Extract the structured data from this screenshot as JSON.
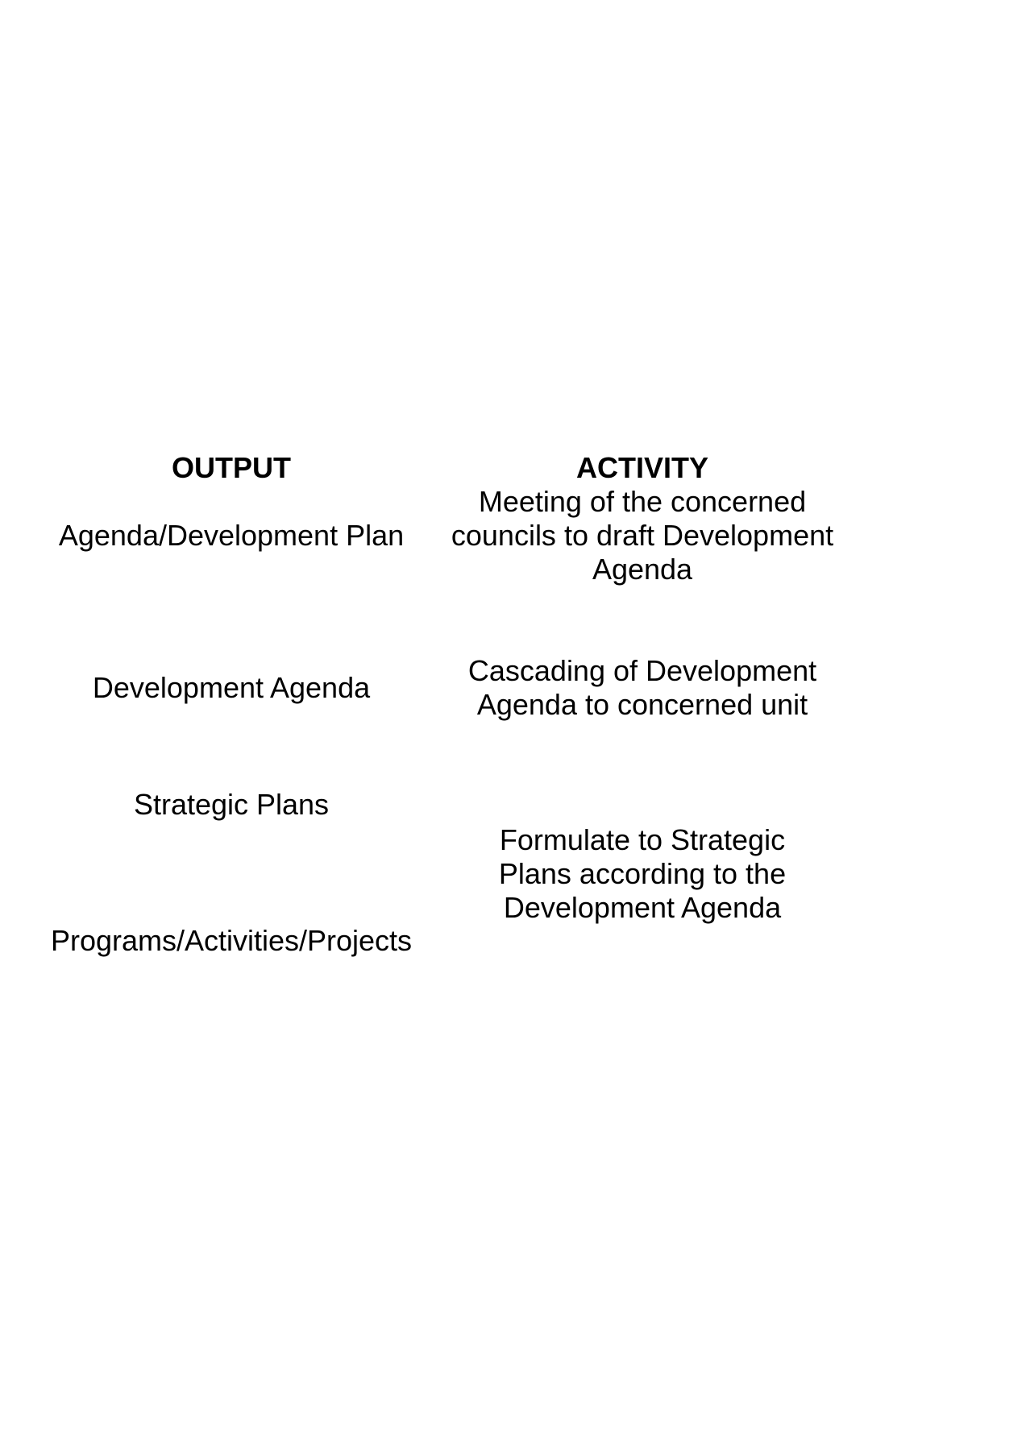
{
  "headings": {
    "output": "OUTPUT",
    "activity": "ACTIVITY"
  },
  "outputs": [
    "Agenda/Development Plan",
    "Development Agenda",
    "Strategic Plans",
    "Programs/Activities/Projects"
  ],
  "activities": [
    "Meeting of the concerned\ncouncils to draft Development\nAgenda",
    "Cascading of Development\nAgenda to concerned unit",
    "Formulate to Strategic\nPlans according to the\nDevelopment Agenda"
  ]
}
